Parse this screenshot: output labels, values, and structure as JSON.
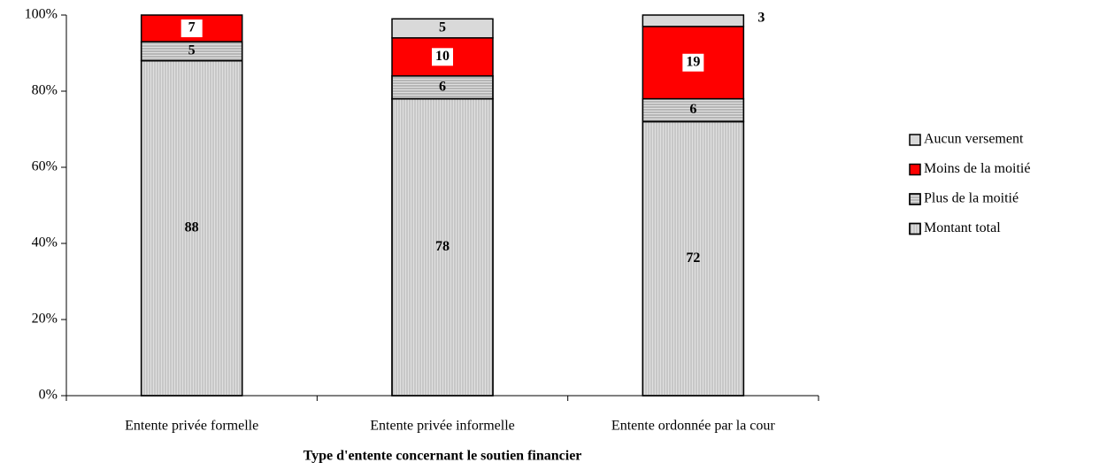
{
  "chart_data": {
    "type": "stacked_bar",
    "x_label": "Type d'entente concernant le soutien financier",
    "categories": [
      "Entente privée formelle",
      "Entente privée informelle",
      "Entente ordonnée par la cour"
    ],
    "series": [
      {
        "name": "Montant total",
        "color": "#e0e0e0",
        "values": [
          88,
          78,
          72
        ]
      },
      {
        "name": "Plus de la moitié",
        "color": "#e0e0e0",
        "values": [
          5,
          6,
          6
        ]
      },
      {
        "name": "Moins de la moitié",
        "color": "#ff0000",
        "values": [
          7,
          10,
          19
        ]
      },
      {
        "name": "Aucun versement",
        "color": "#d9d9d9",
        "values": [
          null,
          5,
          3
        ]
      }
    ],
    "ylim": [
      0,
      100
    ],
    "yticks": [
      {
        "value": 0,
        "label": "0%"
      },
      {
        "value": 20,
        "label": "20%"
      },
      {
        "value": 40,
        "label": "40%"
      },
      {
        "value": 60,
        "label": "60%"
      },
      {
        "value": 80,
        "label": "80%"
      },
      {
        "value": 100,
        "label": "100%"
      }
    ],
    "legend": "right"
  }
}
